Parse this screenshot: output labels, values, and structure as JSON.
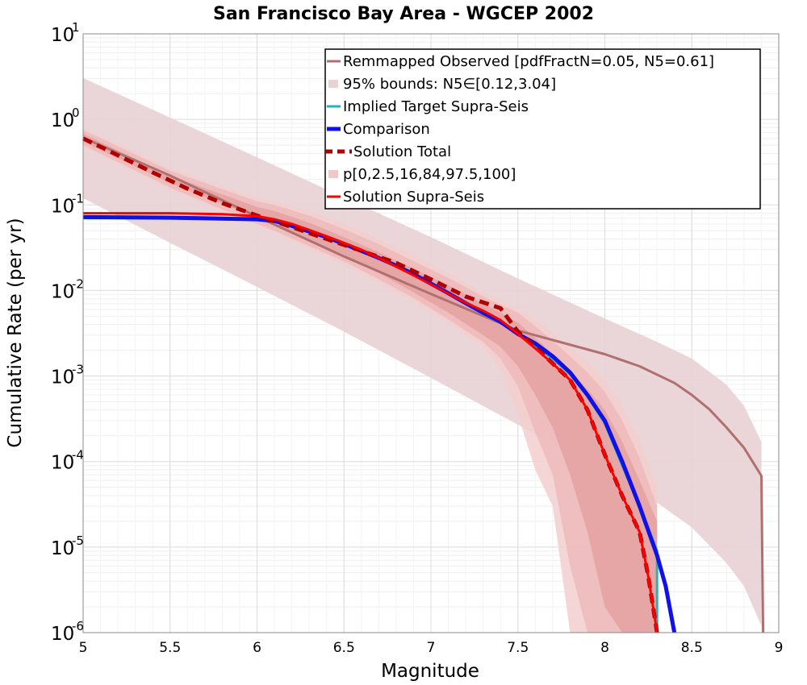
{
  "chart_data": {
    "type": "line",
    "title": "San Francisco Bay Area - WGCEP 2002",
    "xlabel": "Magnitude",
    "ylabel": "Cumulative Rate (per yr)",
    "xlim": [
      5,
      9
    ],
    "ylim": [
      1e-06,
      10
    ],
    "yscale": "log",
    "grid": true,
    "x_ticks": [
      "5",
      "5.5",
      "6",
      "6.5",
      "7",
      "7.5",
      "8",
      "8.5",
      "9"
    ],
    "y_ticks": [
      {
        "base": "10",
        "exp": "1",
        "value": 10
      },
      {
        "base": "10",
        "exp": "0",
        "value": 1
      },
      {
        "base": "10",
        "exp": "-1",
        "value": 0.1
      },
      {
        "base": "10",
        "exp": "-2",
        "value": 0.01
      },
      {
        "base": "10",
        "exp": "-3",
        "value": 0.001
      },
      {
        "base": "10",
        "exp": "-4",
        "value": 0.0001
      },
      {
        "base": "10",
        "exp": "-5",
        "value": 1e-05
      },
      {
        "base": "10",
        "exp": "-6",
        "value": 1e-06
      }
    ],
    "legend_position": "top-right",
    "legend": [
      {
        "label": "Remmapped Observed [pdfFractN=0.05, N5=0.61]",
        "style": "line",
        "color": "#b07070"
      },
      {
        "label": "95% bounds: N5∈[0.12,3.04]",
        "style": "band",
        "color": "#e8d2d4"
      },
      {
        "label": "Implied Target Supra-Seis",
        "style": "line",
        "color": "#1cb8b8"
      },
      {
        "label": "Comparison",
        "style": "line-thick",
        "color": "#1010e8"
      },
      {
        "label": "Solution Total",
        "style": "dashed",
        "color": "#b00000"
      },
      {
        "label": "p[0,2.5,16,84,97.5,100]",
        "style": "band",
        "color": "#f0c8c8"
      },
      {
        "label": "Solution Supra-Seis",
        "style": "line",
        "color": "#ff0000"
      }
    ],
    "bands": [
      {
        "name": "95% bounds: N5∈[0.12,3.04]",
        "color": "#e8d2d4",
        "opacity": 0.9,
        "x": [
          5.0,
          5.5,
          6.0,
          6.5,
          7.0,
          7.5,
          8.0,
          8.3,
          8.5,
          8.7,
          8.8,
          8.9
        ],
        "lower": [
          0.12,
          0.036,
          0.011,
          0.0033,
          0.00095,
          0.00027,
          7.5e-05,
          3.3e-05,
          1.7e-05,
          6.5e-06,
          3.5e-06,
          1.2e-06
        ],
        "upper": [
          3.04,
          1.05,
          0.36,
          0.122,
          0.042,
          0.0138,
          0.0047,
          0.0025,
          0.0016,
          0.00079,
          0.00045,
          0.00017
        ]
      },
      {
        "name": "p 0-100",
        "color": "#f3cfcf",
        "opacity": 0.85,
        "x": [
          5.0,
          5.5,
          6.0,
          6.1,
          6.3,
          6.5,
          6.7,
          6.9,
          7.1,
          7.3,
          7.4,
          7.5,
          7.6,
          7.7,
          7.8,
          7.9,
          8.0,
          8.1,
          8.2,
          8.3
        ],
        "lower": [
          0.48,
          0.15,
          0.058,
          0.048,
          0.031,
          0.02,
          0.0125,
          0.0075,
          0.0042,
          0.0022,
          0.0012,
          0.00035,
          8e-05,
          3e-05,
          1e-06,
          1e-06,
          1e-06,
          1e-06,
          1e-06,
          1e-06
        ],
        "upper": [
          0.8,
          0.27,
          0.12,
          0.11,
          0.085,
          0.06,
          0.04,
          0.026,
          0.016,
          0.0095,
          0.0075,
          0.0062,
          0.0045,
          0.0032,
          0.0022,
          0.0015,
          0.0009,
          0.00045,
          0.00018,
          5e-05
        ]
      },
      {
        "name": "p 2.5-97.5",
        "color": "#edb8b8",
        "opacity": 0.8,
        "x": [
          5.0,
          5.5,
          6.0,
          6.1,
          6.3,
          6.5,
          6.7,
          6.9,
          7.1,
          7.3,
          7.4,
          7.5,
          7.6,
          7.7,
          7.8,
          7.9,
          8.0,
          8.1,
          8.2,
          8.3
        ],
        "lower": [
          0.5,
          0.16,
          0.06,
          0.05,
          0.033,
          0.022,
          0.0135,
          0.0082,
          0.0046,
          0.0025,
          0.0016,
          0.00075,
          0.00022,
          7e-05,
          6e-06,
          1e-06,
          1e-06,
          1e-06,
          1e-06,
          1e-06
        ],
        "upper": [
          0.75,
          0.25,
          0.11,
          0.1,
          0.075,
          0.052,
          0.035,
          0.022,
          0.014,
          0.0085,
          0.0068,
          0.0055,
          0.0038,
          0.0026,
          0.0017,
          0.0011,
          0.00065,
          0.0003,
          0.00011,
          3e-05
        ]
      },
      {
        "name": "p 16-84",
        "color": "#e5a0a0",
        "opacity": 0.8,
        "x": [
          5.0,
          5.5,
          6.0,
          6.1,
          6.3,
          6.5,
          6.7,
          6.9,
          7.1,
          7.3,
          7.4,
          7.5,
          7.6,
          7.7,
          7.8,
          7.9,
          8.0,
          8.1,
          8.2,
          8.3
        ],
        "lower": [
          0.55,
          0.18,
          0.07,
          0.058,
          0.038,
          0.026,
          0.016,
          0.0095,
          0.0055,
          0.003,
          0.0022,
          0.0013,
          0.0006,
          0.00025,
          7e-05,
          1.5e-05,
          2e-06,
          1e-06,
          1e-06,
          1e-06
        ],
        "upper": [
          0.68,
          0.22,
          0.095,
          0.085,
          0.062,
          0.042,
          0.028,
          0.018,
          0.0115,
          0.007,
          0.0055,
          0.0042,
          0.0028,
          0.0018,
          0.0011,
          0.0007,
          0.0004,
          0.00017,
          6e-05,
          2e-05
        ]
      }
    ],
    "series": [
      {
        "name": "Remmapped Observed [pdfFractN=0.05, N5=0.61]",
        "color": "#b07070",
        "width": 3,
        "dash": "",
        "x": [
          5.0,
          5.5,
          6.0,
          6.5,
          7.0,
          7.5,
          8.0,
          8.2,
          8.4,
          8.5,
          8.6,
          8.7,
          8.8,
          8.9,
          8.91
        ],
        "y": [
          0.61,
          0.22,
          0.073,
          0.025,
          0.0091,
          0.0034,
          0.0018,
          0.0013,
          0.00083,
          0.0006,
          0.00041,
          0.00025,
          0.000145,
          6.8e-05,
          1e-06
        ]
      },
      {
        "name": "Implied Target Supra-Seis",
        "color": "#1cb8b8",
        "width": 3,
        "dash": "",
        "x": [
          5.0,
          5.5,
          6.0,
          6.1,
          6.2,
          6.3,
          6.4,
          6.5,
          6.6,
          6.7,
          6.8,
          6.9,
          7.0,
          7.1,
          7.2,
          7.3,
          7.4,
          7.5,
          7.6,
          7.7,
          7.8,
          7.9,
          8.0,
          8.1,
          8.2,
          8.3,
          8.3
        ],
        "y": [
          0.07,
          0.07,
          0.068,
          0.065,
          0.057,
          0.049,
          0.042,
          0.035,
          0.029,
          0.024,
          0.0195,
          0.0155,
          0.012,
          0.0093,
          0.0071,
          0.0055,
          0.0043,
          0.0031,
          0.0022,
          0.0016,
          0.00105,
          0.00058,
          0.00028,
          9e-05,
          3e-05,
          9e-06,
          1e-06
        ]
      },
      {
        "name": "Comparison",
        "color": "#1010e8",
        "width": 5,
        "dash": "",
        "x": [
          5.0,
          5.5,
          6.0,
          6.1,
          6.2,
          6.3,
          6.4,
          6.5,
          6.6,
          6.7,
          6.8,
          6.9,
          7.0,
          7.1,
          7.2,
          7.3,
          7.4,
          7.5,
          7.6,
          7.7,
          7.8,
          7.9,
          8.0,
          8.1,
          8.2,
          8.3,
          8.35,
          8.4
        ],
        "y": [
          0.072,
          0.071,
          0.068,
          0.065,
          0.057,
          0.049,
          0.042,
          0.035,
          0.029,
          0.024,
          0.0195,
          0.0155,
          0.012,
          0.0093,
          0.0071,
          0.0055,
          0.0043,
          0.0031,
          0.0024,
          0.0017,
          0.0011,
          0.0006,
          0.0003,
          0.0001,
          3e-05,
          8e-06,
          3.5e-06,
          1e-06
        ]
      },
      {
        "name": "Solution Total",
        "color": "#b00000",
        "width": 5,
        "dash": "12,7",
        "x": [
          5.0,
          5.2,
          5.4,
          5.6,
          5.8,
          6.0,
          6.2,
          6.4,
          6.6,
          6.8,
          7.0,
          7.2,
          7.4,
          7.5,
          7.6,
          7.7,
          7.8,
          7.9,
          8.0,
          8.1,
          8.2,
          8.25,
          8.3
        ],
        "y": [
          0.6,
          0.38,
          0.24,
          0.155,
          0.105,
          0.075,
          0.055,
          0.04,
          0.029,
          0.021,
          0.0135,
          0.0085,
          0.0062,
          0.0033,
          0.0022,
          0.0014,
          0.0009,
          0.0004,
          0.00012,
          4e-05,
          1.5e-05,
          4.5e-06,
          1e-06
        ]
      },
      {
        "name": "Solution Supra-Seis",
        "color": "#ff0000",
        "width": 3,
        "dash": "",
        "x": [
          5.0,
          5.5,
          5.8,
          6.0,
          6.1,
          6.2,
          6.3,
          6.4,
          6.5,
          6.6,
          6.7,
          6.8,
          6.9,
          7.0,
          7.1,
          7.2,
          7.3,
          7.4,
          7.5,
          7.6,
          7.7,
          7.8,
          7.9,
          8.0,
          8.1,
          8.2,
          8.25,
          8.3
        ],
        "y": [
          0.08,
          0.08,
          0.078,
          0.074,
          0.068,
          0.06,
          0.051,
          0.043,
          0.036,
          0.03,
          0.024,
          0.019,
          0.015,
          0.0118,
          0.0092,
          0.0072,
          0.0058,
          0.0045,
          0.0031,
          0.0021,
          0.0014,
          0.0009,
          0.0004,
          0.00012,
          4e-05,
          1.5e-05,
          4.5e-06,
          1e-06
        ]
      }
    ]
  }
}
